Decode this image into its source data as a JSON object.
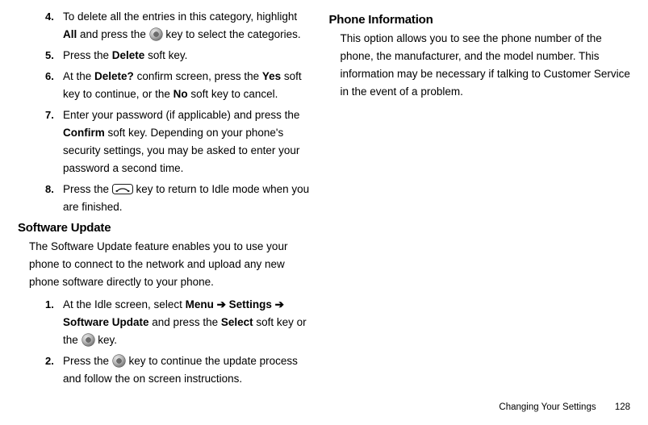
{
  "left": {
    "steps_top": [
      {
        "num": "4.",
        "html": "To delete all the entries in this category, highlight <b>All</b> and press the {{circle}} key to select the categories."
      },
      {
        "num": "5.",
        "html": "Press the <b>Delete</b> soft key."
      },
      {
        "num": "6.",
        "html": "At the <b>Delete?</b> confirm screen, press the <b>Yes</b> soft key to continue, or the <b>No</b> soft key to cancel."
      },
      {
        "num": "7.",
        "html": "Enter your password (if applicable) and press the <b>Confirm</b> soft key. Depending on your phone's security settings, you may be asked to enter your password a second time."
      },
      {
        "num": "8.",
        "html": "Press the {{phone}} key to return to Idle mode when you are finished."
      }
    ],
    "heading1": "Software Update",
    "body1": "The Software Update feature enables you to use your phone to connect to the network and upload any new phone software directly to your phone.",
    "steps_bottom": [
      {
        "num": "1.",
        "html": "At the Idle screen, select <b>Menu ➔ Settings ➔ Software Update</b> and press the <b>Select</b> soft key or the {{circle}} key."
      },
      {
        "num": "2.",
        "html": "Press the {{circle}} key to continue the update process and follow the on screen instructions."
      }
    ]
  },
  "right": {
    "heading": "Phone Information",
    "body": "This option allows you to see the phone number of the phone, the manufacturer, and the model number. This information may be necessary if talking to Customer Service in the event of a problem."
  },
  "footer": {
    "section": "Changing Your Settings",
    "page": "128"
  },
  "icons": {
    "circle_svg": "<svg viewBox='0 0 18 18' xmlns='http://www.w3.org/2000/svg'><defs><radialGradient id='g1' cx='35%' cy='30%' r='70%'><stop offset='0%' stop-color='#e8e8e8'/><stop offset='60%' stop-color='#b5b5b5'/><stop offset='100%' stop-color='#7a7a7a'/></radialGradient></defs><circle cx='9' cy='9' r='8.3' fill='url(#g1)' stroke='#555' stroke-width='0.6'/><circle cx='9' cy='9' r='3.2' fill='#6b6b6b' stroke='#444' stroke-width='0.5'/></svg>",
    "phone_svg": "<svg viewBox='0 0 28 14' xmlns='http://www.w3.org/2000/svg'><rect x='0.6' y='0.6' width='26.8' height='12.8' rx='3.2' ry='3.2' fill='#ffffff' stroke='#000' stroke-width='1'/><path d='M7 9.2 C11 5.5 17 5.5 21 9.2' fill='none' stroke='#000' stroke-width='1.2' stroke-linecap='round'/><ellipse cx='6.2' cy='9.6' rx='1.5' ry='1' fill='#000'/><ellipse cx='21.8' cy='9.6' rx='1.5' ry='1' fill='#000'/></svg>"
  }
}
